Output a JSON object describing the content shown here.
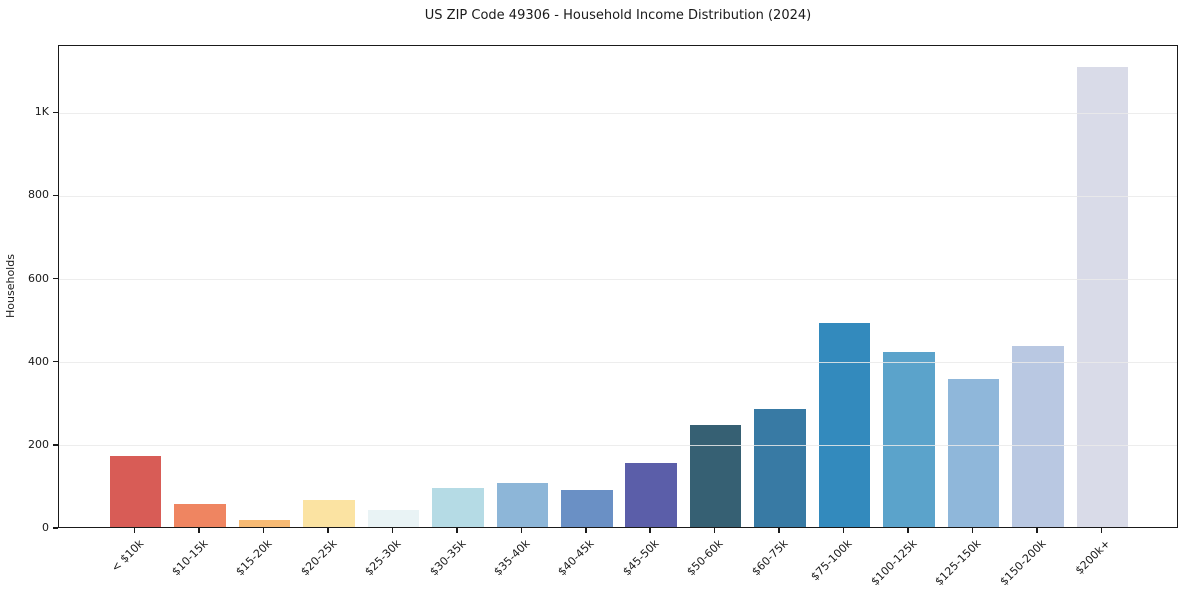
{
  "chart_data": {
    "type": "bar",
    "title": "US ZIP Code 49306 - Household Income Distribution (2024)",
    "xlabel": "",
    "ylabel": "Households",
    "categories": [
      "< $10k",
      "$10-15k",
      "$15-20k",
      "$20-25k",
      "$25-30k",
      "$30-35k",
      "$35-40k",
      "$40-45k",
      "$45-50k",
      "$50-60k",
      "$60-75k",
      "$75-100k",
      "$100-125k",
      "$125-150k",
      "$150-200k",
      "$200k+"
    ],
    "values": [
      170,
      55,
      18,
      65,
      42,
      95,
      107,
      90,
      155,
      245,
      285,
      490,
      422,
      355,
      435,
      1107
    ],
    "bar_colors": [
      "#d85c56",
      "#ef8561",
      "#f7ba74",
      "#fbe3a2",
      "#e9f3f5",
      "#b5dbe5",
      "#8db6d8",
      "#6a90c5",
      "#5b5ea9",
      "#366073",
      "#387aa4",
      "#338abd",
      "#5ba3cb",
      "#8fb7da",
      "#b9c8e2",
      "#d9dbe8"
    ],
    "ytick_values": [
      0,
      200,
      400,
      600,
      800,
      1000
    ],
    "ytick_labels": [
      "0",
      "200",
      "400",
      "600",
      "800",
      "1K"
    ],
    "ylim": [
      0,
      1162
    ],
    "grid": "horizontal",
    "legend": "none",
    "axis_color": "#1a1a1a",
    "gridline_color": "#eaeaea",
    "background_color": "#ffffff"
  }
}
